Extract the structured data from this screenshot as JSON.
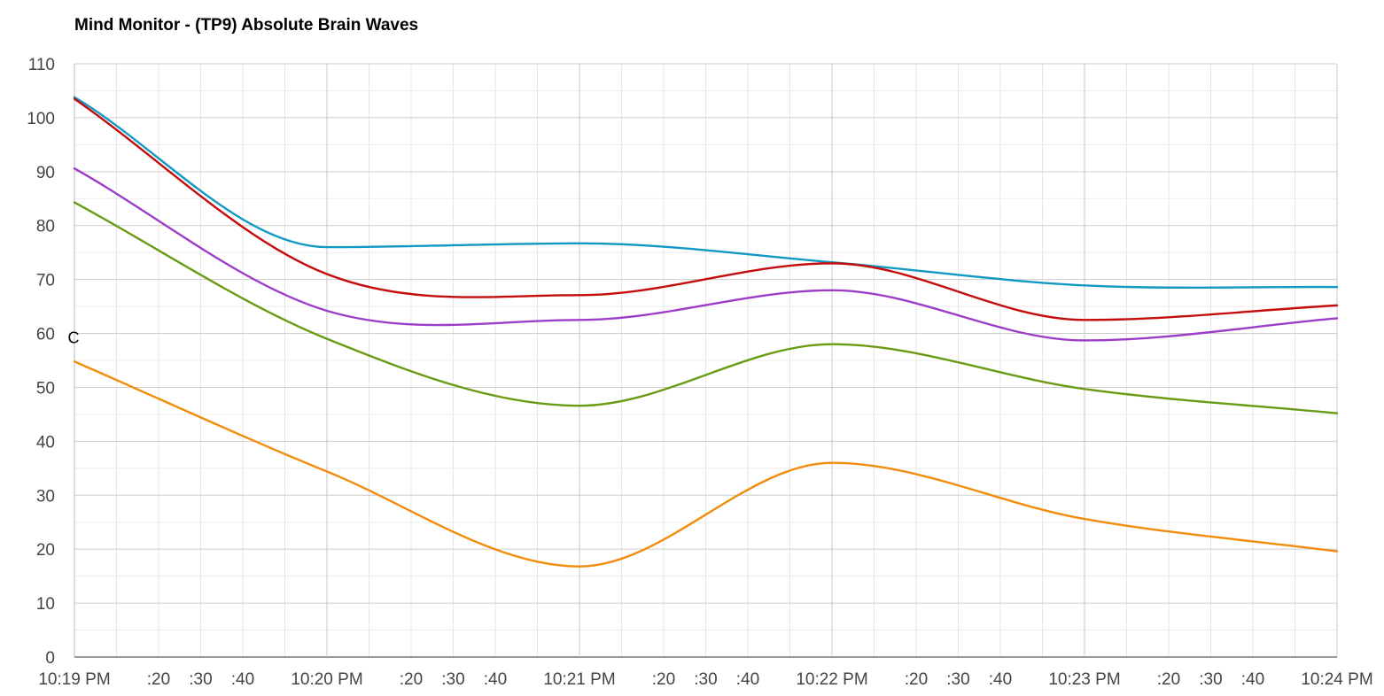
{
  "chart_data": {
    "type": "line",
    "title": "Mind Monitor - (TP9) Absolute Brain Waves",
    "xlabel": "",
    "ylabel": "",
    "ylim": [
      0,
      110
    ],
    "y_ticks": [
      0,
      10,
      20,
      30,
      40,
      50,
      60,
      70,
      80,
      90,
      100,
      110
    ],
    "x_range_seconds": [
      0,
      300
    ],
    "x_ticks": [
      {
        "t": 0,
        "label": "10:19 PM"
      },
      {
        "t": 20,
        "label": ":20"
      },
      {
        "t": 30,
        "label": ":30"
      },
      {
        "t": 40,
        "label": ":40"
      },
      {
        "t": 60,
        "label": "10:20 PM"
      },
      {
        "t": 80,
        "label": ":20"
      },
      {
        "t": 90,
        "label": ":30"
      },
      {
        "t": 100,
        "label": ":40"
      },
      {
        "t": 120,
        "label": "10:21 PM"
      },
      {
        "t": 140,
        "label": ":20"
      },
      {
        "t": 150,
        "label": ":30"
      },
      {
        "t": 160,
        "label": ":40"
      },
      {
        "t": 180,
        "label": "10:22 PM"
      },
      {
        "t": 200,
        "label": ":20"
      },
      {
        "t": 210,
        "label": ":30"
      },
      {
        "t": 220,
        "label": ":40"
      },
      {
        "t": 240,
        "label": "10:23 PM"
      },
      {
        "t": 260,
        "label": ":20"
      },
      {
        "t": 270,
        "label": ":30"
      },
      {
        "t": 280,
        "label": ":40"
      },
      {
        "t": 300,
        "label": "10:24 PM"
      }
    ],
    "grid": true,
    "legend": "none",
    "annotations": [
      {
        "t": 0,
        "y": 60,
        "text": "C"
      }
    ],
    "x": [
      0,
      60,
      120,
      180,
      240,
      300
    ],
    "series": [
      {
        "color": "#1199C4",
        "values": [
          103.8,
          76.0,
          76.7,
          73.2,
          68.9,
          68.6
        ]
      },
      {
        "color": "#C40C0C",
        "values": [
          103.5,
          71.0,
          67.1,
          73.0,
          62.5,
          65.2
        ]
      },
      {
        "color": "#9C3DC8",
        "values": [
          90.6,
          64.2,
          62.5,
          68.0,
          58.7,
          62.8
        ]
      },
      {
        "color": "#6A9B14",
        "values": [
          84.3,
          59.0,
          46.6,
          58.0,
          49.7,
          45.2
        ]
      },
      {
        "color": "#F28C0C",
        "values": [
          54.8,
          34.4,
          16.8,
          36.0,
          25.6,
          19.6
        ]
      }
    ]
  }
}
